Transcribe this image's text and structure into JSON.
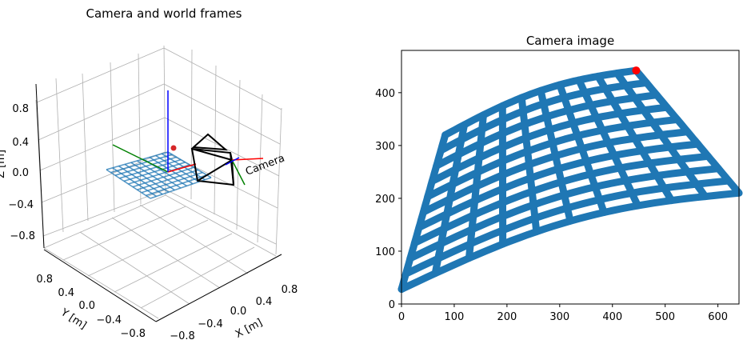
{
  "chart_data": [
    {
      "type": "3d-line",
      "title": "Camera and world frames",
      "xlabel": "X [m]",
      "ylabel": "Y [m]",
      "zlabel": "Z [m]",
      "xlim": [
        -1,
        1
      ],
      "ylim": [
        -1,
        1
      ],
      "zlim": [
        -1,
        1
      ],
      "x_ticks": [
        "−0.8",
        "−0.4",
        "0.0",
        "0.4",
        "0.8"
      ],
      "y_ticks": [
        "−0.8",
        "−0.4",
        "0.0",
        "0.4",
        "0.8"
      ],
      "z_ticks": [
        "−0.8",
        "−0.4",
        "0.0",
        "0.4",
        "0.8"
      ],
      "grid": true,
      "annotation": "Camera",
      "colors": {
        "x_axis": "#ff0000",
        "y_axis": "#008000",
        "z_axis": "#0000ff",
        "grid_lines": "#1f77b4",
        "camera": "#000000",
        "point": "#d62728"
      }
    },
    {
      "type": "scatter",
      "title": "Camera image",
      "xlim": [
        0,
        640
      ],
      "ylim": [
        0,
        480
      ],
      "x_ticks": [
        "0",
        "100",
        "200",
        "300",
        "400",
        "500",
        "600"
      ],
      "y_ticks": [
        "0",
        "100",
        "200",
        "300",
        "400"
      ],
      "point_color": "#1f77b4",
      "highlight": {
        "x": 445,
        "y": 442,
        "color": "#ff0000"
      },
      "grid_corners": {
        "bottom_left": [
          0,
          28
        ],
        "top_left": [
          83,
          320
        ],
        "top_right": [
          445,
          442
        ],
        "bottom_right": [
          640,
          210
        ]
      },
      "grid_divisions": 10
    }
  ]
}
